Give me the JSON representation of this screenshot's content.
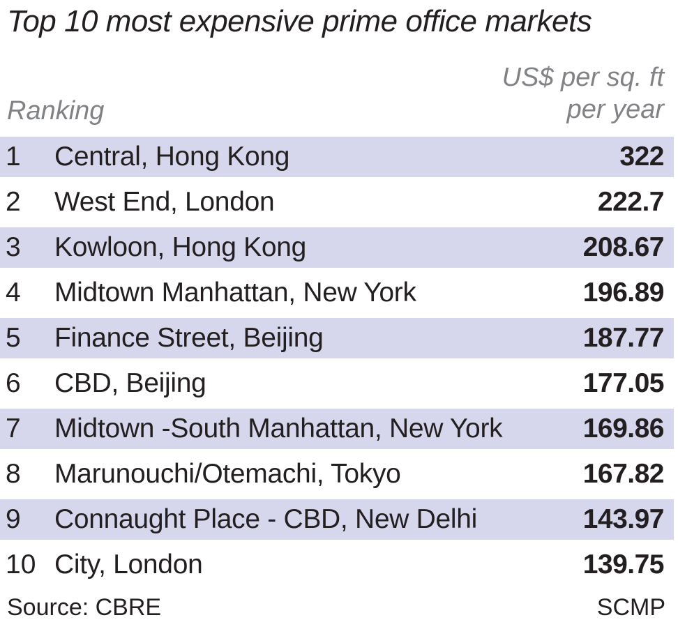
{
  "chart_data": {
    "type": "table",
    "title": "Top 10 most expensive prime office markets",
    "column_headers": {
      "ranking": "Ranking",
      "unit_line1": "US$ per sq. ft",
      "unit_line2": "per year"
    },
    "rows": [
      {
        "rank": "1",
        "market": "Central, Hong Kong",
        "value": "322"
      },
      {
        "rank": "2",
        "market": "West End, London",
        "value": "222.7"
      },
      {
        "rank": "3",
        "market": "Kowloon, Hong Kong",
        "value": "208.67"
      },
      {
        "rank": "4",
        "market": "Midtown Manhattan, New York",
        "value": "196.89"
      },
      {
        "rank": "5",
        "market": "Finance Street, Beijing",
        "value": "187.77"
      },
      {
        "rank": "6",
        "market": "CBD, Beijing",
        "value": "177.05"
      },
      {
        "rank": "7",
        "market": "Midtown -South Manhattan, New York",
        "value": "169.86"
      },
      {
        "rank": "8",
        "market": "Marunouchi/Otemachi, Tokyo",
        "value": "167.82"
      },
      {
        "rank": "9",
        "market": "Connaught Place - CBD, New Delhi",
        "value": "143.97"
      },
      {
        "rank": "10",
        "market": "City, London",
        "value": "139.75"
      }
    ],
    "source": "Source: CBRE",
    "credit": "SCMP",
    "row_shade_color": "#d6d6ec"
  }
}
